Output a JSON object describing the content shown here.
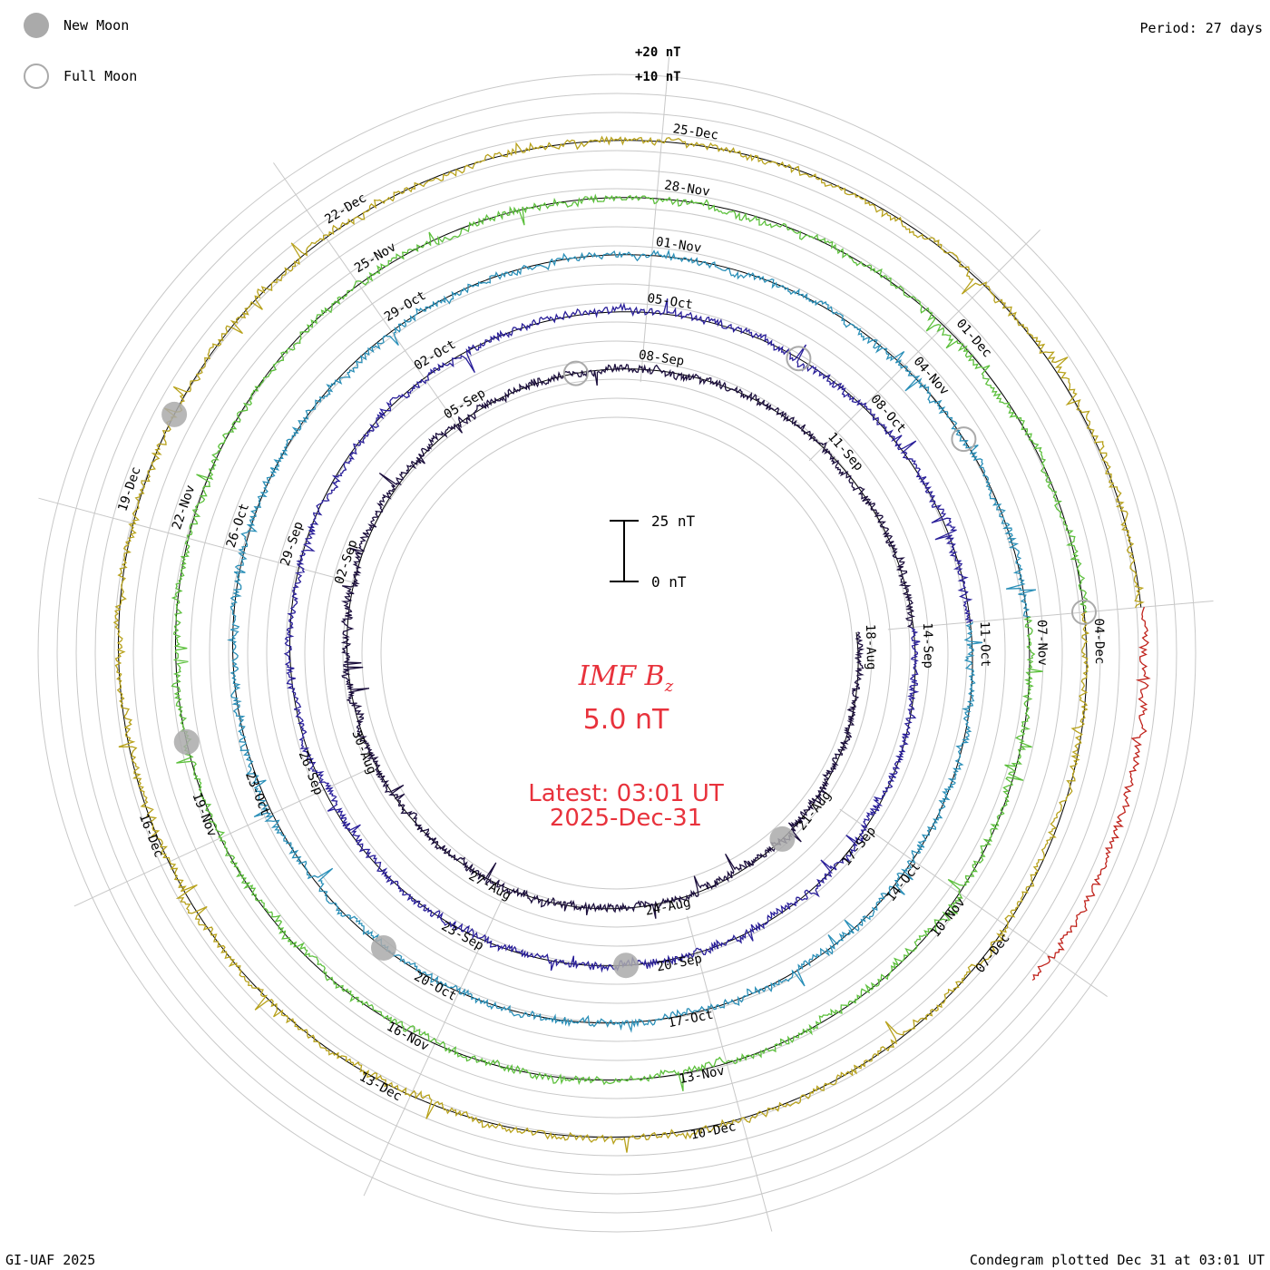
{
  "header": {
    "period_label": "Period: 27 days"
  },
  "legend": {
    "new_moon": {
      "label": "New Moon",
      "color": "#aaaaaa"
    },
    "full_moon": {
      "label": "Full Moon",
      "color": "#aaaaaa"
    }
  },
  "center": {
    "title_main": "IMF B",
    "title_sub": "z",
    "value": "5.0 nT",
    "latest_line1": "Latest: 03:01 UT",
    "latest_line2": "2025-Dec-31",
    "color": "#e8323c"
  },
  "scale_bar": {
    "top_label": "25 nT",
    "bottom_label": "0 nT"
  },
  "footer": {
    "left": "GI-UAF 2025",
    "right": "Condegram plotted Dec 31 at 03:01 UT"
  },
  "chart_data": {
    "type": "line",
    "subtype": "condegram (spiral, one ring per 27-day rotation)",
    "title": "IMF Bz",
    "period_days": 27,
    "value_units": "nT",
    "outer_scale_labels": [
      "+20 nT",
      "+10 nT"
    ],
    "scale_bar_nT": [
      0,
      25
    ],
    "latest": {
      "time": "03:01 UT",
      "date": "2025-Dec-31",
      "value_nT": 5.0
    },
    "rotations": [
      {
        "index": 0,
        "color": "#1c0f3d",
        "date_labels": [
          "18-Aug",
          "21-Aug",
          "24-Aug",
          "27-Aug",
          "30-Aug",
          "02-Sep",
          "05-Sep",
          "08-Sep",
          "11-Sep"
        ]
      },
      {
        "index": 1,
        "color": "#2a1f9a",
        "date_labels": [
          "14-Sep",
          "17-Sep",
          "20-Sep",
          "23-Sep",
          "26-Sep",
          "29-Sep",
          "02-Oct",
          "05-Oct",
          "08-Oct"
        ]
      },
      {
        "index": 2,
        "color": "#2a8fb8",
        "date_labels": [
          "11-Oct",
          "14-Oct",
          "17-Oct",
          "20-Oct",
          "23-Oct",
          "26-Oct",
          "29-Oct",
          "01-Nov",
          "04-Nov"
        ]
      },
      {
        "index": 3,
        "color": "#5cc03c",
        "date_labels": [
          "07-Nov",
          "10-Nov",
          "13-Nov",
          "16-Nov",
          "19-Nov",
          "22-Nov",
          "25-Nov",
          "28-Nov",
          "01-Dec"
        ]
      },
      {
        "index": 4,
        "color": "#b8a21c",
        "date_labels": [
          "04-Dec",
          "07-Dec",
          "10-Dec",
          "13-Dec",
          "16-Dec",
          "19-Dec",
          "22-Dec",
          "25-Dec"
        ]
      },
      {
        "index": 5,
        "color": "#c0231c",
        "date_labels": []
      }
    ],
    "new_moon_dates": [
      "22-Aug",
      "21-Sep",
      "21-Oct",
      "20-Nov",
      "20-Dec"
    ],
    "full_moon_dates": [
      "07-Sep",
      "07-Oct",
      "05-Nov",
      "04-Dec"
    ],
    "grid": true
  }
}
